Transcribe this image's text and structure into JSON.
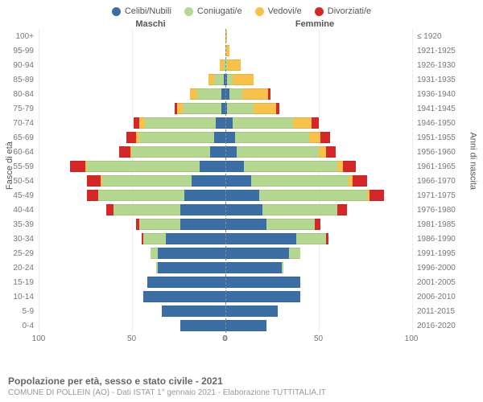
{
  "chart": {
    "type": "population-pyramid",
    "legend": [
      {
        "label": "Celibi/Nubili",
        "color": "#3b6ea5"
      },
      {
        "label": "Coniugati/e",
        "color": "#b4d88f"
      },
      {
        "label": "Vedovi/e",
        "color": "#f8c24a"
      },
      {
        "label": "Divorziati/e",
        "color": "#d62728"
      }
    ],
    "header_left": "Maschi",
    "header_right": "Femmine",
    "y_label_left": "Fasce di età",
    "y_label_right": "Anni di nascita",
    "x_ticks_left": [
      "100",
      "50",
      "0"
    ],
    "x_ticks_right": [
      "0",
      "50",
      "100"
    ],
    "x_max": 100,
    "background_color": "#ffffff",
    "grid_color": "#eeeeee",
    "center_line_color": "#888888",
    "label_color": "#777777",
    "age_groups": [
      {
        "age": "100+",
        "birth": "≤ 1920",
        "m": [
          0,
          0,
          0,
          0
        ],
        "f": [
          0,
          0,
          1,
          0
        ]
      },
      {
        "age": "95-99",
        "birth": "1921-1925",
        "m": [
          0,
          0,
          0,
          0
        ],
        "f": [
          0,
          0,
          2,
          0
        ]
      },
      {
        "age": "90-94",
        "birth": "1926-1930",
        "m": [
          0,
          1,
          2,
          0
        ],
        "f": [
          0,
          1,
          7,
          0
        ]
      },
      {
        "age": "85-89",
        "birth": "1931-1935",
        "m": [
          1,
          5,
          3,
          0
        ],
        "f": [
          1,
          3,
          11,
          0
        ]
      },
      {
        "age": "80-84",
        "birth": "1936-1940",
        "m": [
          2,
          13,
          4,
          0
        ],
        "f": [
          2,
          7,
          14,
          1
        ]
      },
      {
        "age": "75-79",
        "birth": "1941-1945",
        "m": [
          2,
          21,
          3,
          1
        ],
        "f": [
          1,
          14,
          12,
          2
        ]
      },
      {
        "age": "70-74",
        "birth": "1946-1950",
        "m": [
          5,
          38,
          3,
          3
        ],
        "f": [
          4,
          32,
          10,
          4
        ]
      },
      {
        "age": "65-69",
        "birth": "1951-1955",
        "m": [
          6,
          40,
          2,
          5
        ],
        "f": [
          5,
          40,
          6,
          5
        ]
      },
      {
        "age": "60-64",
        "birth": "1956-1960",
        "m": [
          8,
          42,
          1,
          6
        ],
        "f": [
          6,
          44,
          4,
          5
        ]
      },
      {
        "age": "55-59",
        "birth": "1961-1965",
        "m": [
          14,
          60,
          1,
          8
        ],
        "f": [
          10,
          50,
          3,
          7
        ]
      },
      {
        "age": "50-54",
        "birth": "1966-1970",
        "m": [
          18,
          48,
          1,
          7
        ],
        "f": [
          14,
          52,
          2,
          8
        ]
      },
      {
        "age": "45-49",
        "birth": "1971-1975",
        "m": [
          22,
          46,
          0,
          6
        ],
        "f": [
          18,
          58,
          1,
          8
        ]
      },
      {
        "age": "40-44",
        "birth": "1976-1980",
        "m": [
          24,
          36,
          0,
          4
        ],
        "f": [
          20,
          40,
          0,
          5
        ]
      },
      {
        "age": "35-39",
        "birth": "1981-1985",
        "m": [
          24,
          22,
          0,
          2
        ],
        "f": [
          22,
          26,
          0,
          3
        ]
      },
      {
        "age": "30-34",
        "birth": "1986-1990",
        "m": [
          32,
          12,
          0,
          1
        ],
        "f": [
          38,
          16,
          0,
          1
        ]
      },
      {
        "age": "25-29",
        "birth": "1991-1995",
        "m": [
          36,
          4,
          0,
          0
        ],
        "f": [
          34,
          6,
          0,
          0
        ]
      },
      {
        "age": "20-24",
        "birth": "1996-2000",
        "m": [
          36,
          1,
          0,
          0
        ],
        "f": [
          30,
          1,
          0,
          0
        ]
      },
      {
        "age": "15-19",
        "birth": "2001-2005",
        "m": [
          42,
          0,
          0,
          0
        ],
        "f": [
          40,
          0,
          0,
          0
        ]
      },
      {
        "age": "10-14",
        "birth": "2006-2010",
        "m": [
          44,
          0,
          0,
          0
        ],
        "f": [
          40,
          0,
          0,
          0
        ]
      },
      {
        "age": "5-9",
        "birth": "2011-2015",
        "m": [
          34,
          0,
          0,
          0
        ],
        "f": [
          28,
          0,
          0,
          0
        ]
      },
      {
        "age": "0-4",
        "birth": "2016-2020",
        "m": [
          24,
          0,
          0,
          0
        ],
        "f": [
          22,
          0,
          0,
          0
        ]
      }
    ]
  },
  "footer": {
    "title": "Popolazione per età, sesso e stato civile - 2021",
    "subtitle": "COMUNE DI POLLEIN (AO) - Dati ISTAT 1° gennaio 2021 - Elaborazione TUTTITALIA.IT"
  }
}
